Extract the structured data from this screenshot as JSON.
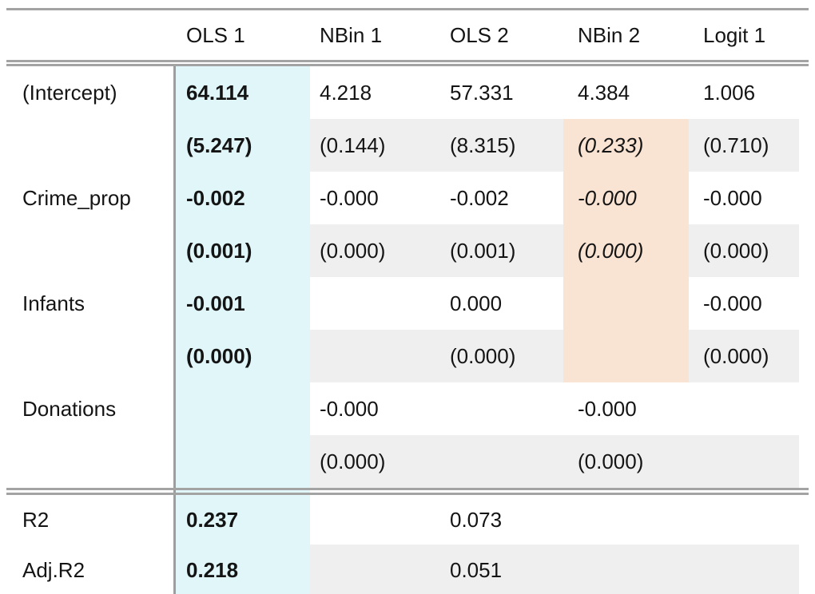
{
  "theme": {
    "highlight_cyan": "#e0f6f9",
    "highlight_peach": "#f9e3d3",
    "stripe_gray": "#efefef",
    "rule_gray": "#a3a3a3",
    "divider_gray": "#9e9e9e",
    "text_color": "#141414",
    "background": "#ffffff"
  },
  "table": {
    "column_headers": [
      "OLS 1",
      "NBin 1",
      "OLS 2",
      "NBin 2",
      "Logit 1"
    ],
    "coef_rows": [
      {
        "label": "(Intercept)",
        "kind": "estimate",
        "nbin2_highlighted": false,
        "cells": [
          "64.114",
          "4.218",
          "57.331",
          "4.384",
          "1.006"
        ]
      },
      {
        "label": "",
        "kind": "stderr",
        "nbin2_highlighted": true,
        "cells": [
          "(5.247)",
          "(0.144)",
          "(8.315)",
          "(0.233)",
          "(0.710)"
        ]
      },
      {
        "label": "Crime_prop",
        "kind": "estimate",
        "nbin2_highlighted": true,
        "cells": [
          "-0.002",
          "-0.000",
          "-0.002",
          "-0.000",
          "-0.000"
        ]
      },
      {
        "label": "",
        "kind": "stderr",
        "nbin2_highlighted": true,
        "cells": [
          "(0.001)",
          "(0.000)",
          "(0.001)",
          "(0.000)",
          "(0.000)"
        ]
      },
      {
        "label": "Infants",
        "kind": "estimate",
        "nbin2_highlighted": true,
        "cells": [
          "-0.001",
          "",
          "0.000",
          "",
          "-0.000"
        ]
      },
      {
        "label": "",
        "kind": "stderr",
        "nbin2_highlighted": true,
        "cells": [
          "(0.000)",
          "",
          "(0.000)",
          "",
          "(0.000)"
        ]
      },
      {
        "label": "Donations",
        "kind": "estimate",
        "nbin2_highlighted": false,
        "cells": [
          "",
          "-0.000",
          "",
          "-0.000",
          ""
        ]
      },
      {
        "label": "",
        "kind": "stderr",
        "nbin2_highlighted": false,
        "cells": [
          "",
          "(0.000)",
          "",
          "(0.000)",
          ""
        ]
      }
    ],
    "gof_rows": [
      {
        "label": "R2",
        "cells": [
          "0.237",
          "",
          "0.073",
          "",
          ""
        ]
      },
      {
        "label": "Adj.R2",
        "cells": [
          "0.218",
          "",
          "0.051",
          "",
          ""
        ]
      }
    ]
  }
}
